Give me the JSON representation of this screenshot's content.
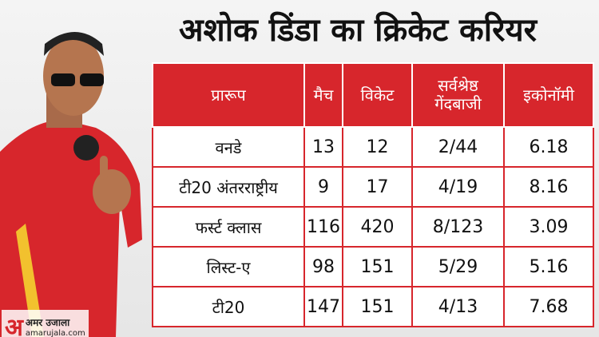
{
  "header": {
    "title": "अशोक डिंडा का क्रिकेट करियर"
  },
  "table": {
    "columns": [
      "प्रारूप",
      "मैच",
      "विकेट",
      "सर्वश्रेष्ठ गेंदबाजी",
      "इकोनॉमी"
    ],
    "rows": [
      [
        "वनडे",
        13,
        12,
        "2/44",
        6.18
      ],
      [
        "टी20 अंतरराष्ट्रीय",
        9,
        17,
        "4/19",
        8.16
      ],
      [
        "फर्स्ट क्लास",
        116,
        420,
        "8/123",
        3.09
      ],
      [
        "लिस्ट-ए",
        98,
        151,
        "5/29",
        5.16
      ],
      [
        "टी20",
        147,
        151,
        "4/13",
        7.68
      ]
    ]
  },
  "logo": {
    "mark": "अ",
    "name": "अमर उजाला",
    "url": "amarujala.com"
  }
}
